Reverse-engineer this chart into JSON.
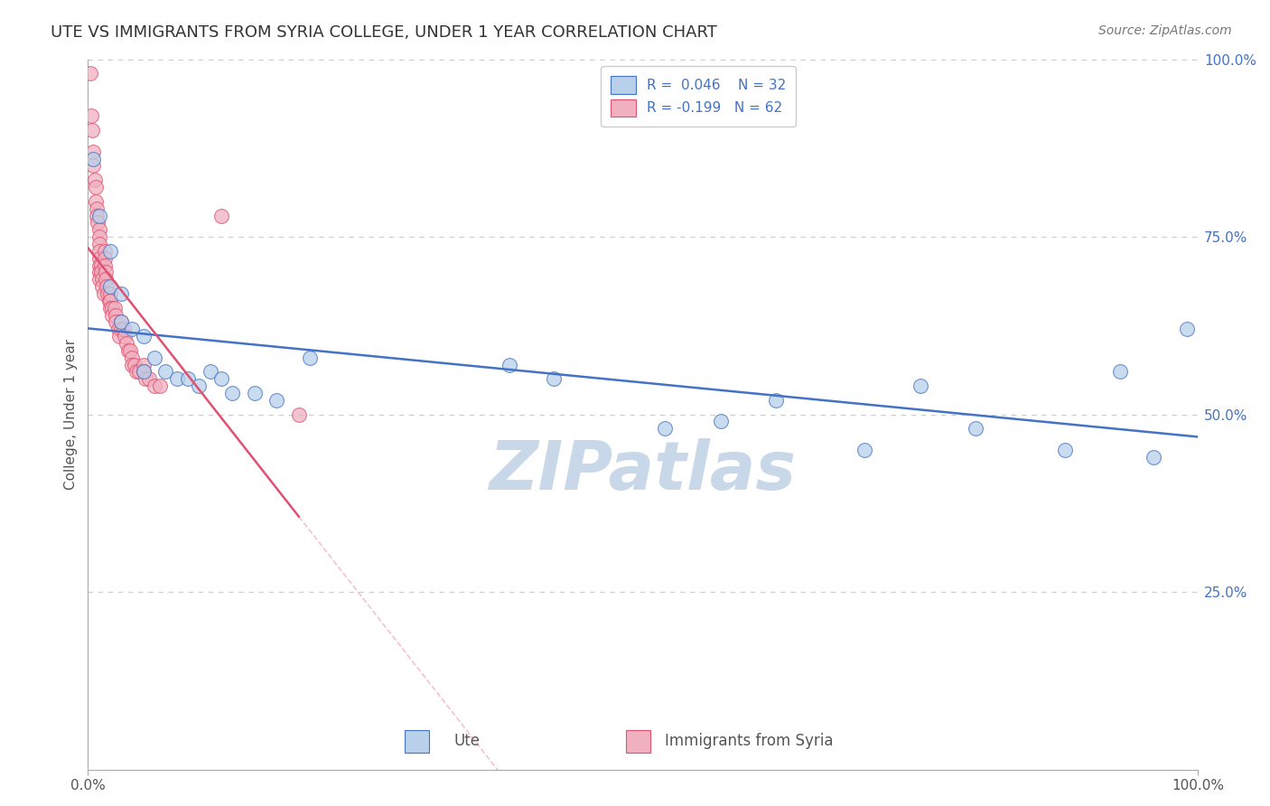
{
  "title": "UTE VS IMMIGRANTS FROM SYRIA COLLEGE, UNDER 1 YEAR CORRELATION CHART",
  "source_text": "Source: ZipAtlas.com",
  "watermark": "ZIPatlas",
  "ylabel": "College, Under 1 year",
  "xmin": 0.0,
  "xmax": 1.0,
  "ymin": 0.0,
  "ymax": 1.0,
  "ytick_labels": [
    "25.0%",
    "50.0%",
    "75.0%",
    "100.0%"
  ],
  "ytick_values": [
    0.25,
    0.5,
    0.75,
    1.0
  ],
  "blue_scatter_x": [
    0.005,
    0.01,
    0.02,
    0.02,
    0.03,
    0.03,
    0.04,
    0.05,
    0.05,
    0.06,
    0.07,
    0.08,
    0.09,
    0.1,
    0.11,
    0.12,
    0.13,
    0.15,
    0.17,
    0.2,
    0.38,
    0.42,
    0.52,
    0.57,
    0.62,
    0.7,
    0.75,
    0.8,
    0.88,
    0.93,
    0.96,
    0.99
  ],
  "blue_scatter_y": [
    0.86,
    0.78,
    0.73,
    0.68,
    0.67,
    0.63,
    0.62,
    0.61,
    0.56,
    0.58,
    0.56,
    0.55,
    0.55,
    0.54,
    0.56,
    0.55,
    0.53,
    0.53,
    0.52,
    0.58,
    0.57,
    0.55,
    0.48,
    0.49,
    0.52,
    0.45,
    0.54,
    0.48,
    0.45,
    0.56,
    0.44,
    0.62
  ],
  "pink_scatter_x": [
    0.002,
    0.003,
    0.004,
    0.005,
    0.005,
    0.006,
    0.007,
    0.007,
    0.008,
    0.008,
    0.009,
    0.01,
    0.01,
    0.01,
    0.01,
    0.01,
    0.01,
    0.01,
    0.01,
    0.012,
    0.012,
    0.013,
    0.013,
    0.014,
    0.015,
    0.015,
    0.015,
    0.016,
    0.016,
    0.017,
    0.018,
    0.019,
    0.02,
    0.02,
    0.02,
    0.022,
    0.022,
    0.024,
    0.025,
    0.025,
    0.027,
    0.028,
    0.03,
    0.03,
    0.032,
    0.033,
    0.035,
    0.036,
    0.038,
    0.04,
    0.04,
    0.042,
    0.044,
    0.046,
    0.05,
    0.05,
    0.052,
    0.055,
    0.06,
    0.065,
    0.12,
    0.19
  ],
  "pink_scatter_y": [
    0.98,
    0.92,
    0.9,
    0.87,
    0.85,
    0.83,
    0.82,
    0.8,
    0.79,
    0.78,
    0.77,
    0.76,
    0.75,
    0.74,
    0.73,
    0.72,
    0.71,
    0.7,
    0.69,
    0.71,
    0.7,
    0.69,
    0.68,
    0.67,
    0.73,
    0.72,
    0.71,
    0.7,
    0.69,
    0.68,
    0.67,
    0.66,
    0.67,
    0.66,
    0.65,
    0.65,
    0.64,
    0.65,
    0.64,
    0.63,
    0.62,
    0.61,
    0.63,
    0.62,
    0.62,
    0.61,
    0.6,
    0.59,
    0.59,
    0.58,
    0.57,
    0.57,
    0.56,
    0.56,
    0.57,
    0.56,
    0.55,
    0.55,
    0.54,
    0.54,
    0.78,
    0.5
  ],
  "blue_line_color": "#4472c4",
  "pink_line_color": "#e05070",
  "blue_scatter_color": "#b8d0ea",
  "pink_scatter_color": "#f0b0c0",
  "grid_color": "#cccccc",
  "background_color": "#ffffff",
  "watermark_color": "#c8d8e8",
  "title_fontsize": 13,
  "axis_label_fontsize": 11,
  "tick_fontsize": 11,
  "legend_fontsize": 11,
  "source_fontsize": 10
}
